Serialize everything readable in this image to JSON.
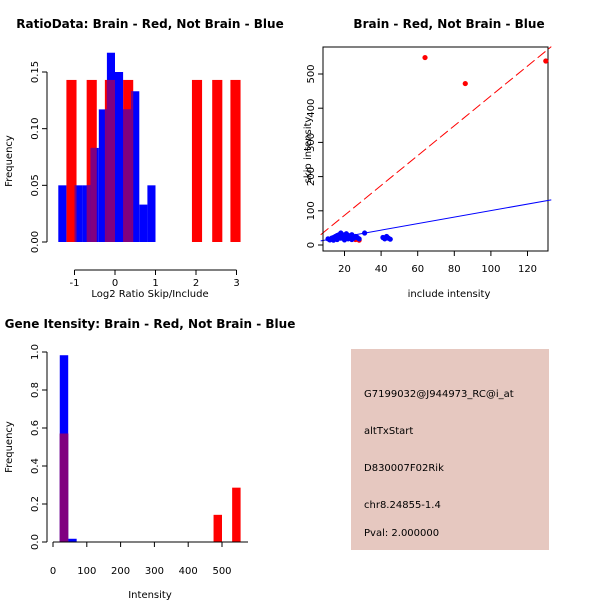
{
  "chart_data": [
    {
      "id": "ratio_hist",
      "type": "bar",
      "title": "RatioData: Brain - Red, Not Brain - Blue",
      "xlabel": "Log2 Ratio Skip/Include",
      "ylabel": "Frequency",
      "xlim": [
        -1.4,
        3.2
      ],
      "ylim": [
        0,
        0.17
      ],
      "xticks": [
        -1,
        0,
        1,
        2,
        3
      ],
      "yticks": [
        0.0,
        0.05,
        0.1,
        0.15
      ],
      "ytick_labels": [
        "0.00",
        "0.05",
        "0.10",
        "0.15"
      ],
      "series": [
        {
          "name": "Brain",
          "color": "#ff0000",
          "bins": [
            {
              "x0": -1.2,
              "x1": -0.95,
              "value": 0.143
            },
            {
              "x0": -0.7,
              "x1": -0.45,
              "value": 0.143
            },
            {
              "x0": -0.25,
              "x1": 0.0,
              "value": 0.143
            },
            {
              "x0": 0.2,
              "x1": 0.45,
              "value": 0.143
            },
            {
              "x0": 1.9,
              "x1": 2.15,
              "value": 0.143
            },
            {
              "x0": 2.4,
              "x1": 2.65,
              "value": 0.143
            },
            {
              "x0": 2.85,
              "x1": 3.1,
              "value": 0.143
            }
          ]
        },
        {
          "name": "Not Brain",
          "color": "#0000ff",
          "bins": [
            {
              "x0": -1.4,
              "x1": -1.2,
              "value": 0.05
            },
            {
              "x0": -1.0,
              "x1": -0.8,
              "value": 0.05
            },
            {
              "x0": -0.8,
              "x1": -0.6,
              "value": 0.05
            },
            {
              "x0": -0.6,
              "x1": -0.4,
              "value": 0.083
            },
            {
              "x0": -0.4,
              "x1": -0.2,
              "value": 0.117
            },
            {
              "x0": -0.2,
              "x1": 0.0,
              "value": 0.167
            },
            {
              "x0": 0.0,
              "x1": 0.2,
              "value": 0.15
            },
            {
              "x0": 0.2,
              "x1": 0.4,
              "value": 0.117
            },
            {
              "x0": 0.4,
              "x1": 0.6,
              "value": 0.133
            },
            {
              "x0": 0.6,
              "x1": 0.8,
              "value": 0.033
            },
            {
              "x0": 0.8,
              "x1": 1.0,
              "value": 0.05
            }
          ]
        }
      ]
    },
    {
      "id": "skip_scatter",
      "type": "scatter",
      "title": "Brain - Red, Not Brain - Blue",
      "xlabel": "include intensity",
      "ylabel": "skip intensity",
      "xlim": [
        5,
        133
      ],
      "ylim": [
        -5,
        580
      ],
      "xticks": [
        20,
        40,
        60,
        80,
        100,
        120
      ],
      "yticks": [
        0,
        100,
        200,
        300,
        400,
        500
      ],
      "series": [
        {
          "name": "Brain",
          "color": "#ff0000",
          "points": [
            [
              64,
              548
            ],
            [
              86,
              472
            ],
            [
              130,
              538
            ],
            [
              16,
              20
            ],
            [
              18,
              24
            ],
            [
              20,
              18
            ],
            [
              22,
              28
            ],
            [
              24,
              22
            ],
            [
              26,
              16
            ],
            [
              28,
              14
            ]
          ],
          "fit": {
            "x": [
              7,
              133
            ],
            "y": [
              30,
              580
            ],
            "style": "dashed"
          }
        },
        {
          "name": "Not Brain",
          "color": "#0000ff",
          "points": [
            [
              11,
              18
            ],
            [
              12,
              15
            ],
            [
              13,
              20
            ],
            [
              14,
              22
            ],
            [
              14,
              14
            ],
            [
              15,
              25
            ],
            [
              15,
              18
            ],
            [
              16,
              28
            ],
            [
              16,
              16
            ],
            [
              17,
              30
            ],
            [
              17,
              22
            ],
            [
              18,
              35
            ],
            [
              18,
              20
            ],
            [
              19,
              25
            ],
            [
              19,
              30
            ],
            [
              20,
              26
            ],
            [
              20,
              15
            ],
            [
              21,
              33
            ],
            [
              21,
              22
            ],
            [
              22,
              18
            ],
            [
              22,
              28
            ],
            [
              23,
              24
            ],
            [
              24,
              30
            ],
            [
              24,
              16
            ],
            [
              25,
              20
            ],
            [
              26,
              25
            ],
            [
              27,
              22
            ],
            [
              28,
              18
            ],
            [
              31,
              35
            ],
            [
              41,
              22
            ],
            [
              42,
              18
            ],
            [
              43,
              25
            ],
            [
              44,
              20
            ],
            [
              45,
              17
            ]
          ],
          "fit": {
            "x": [
              7,
              133
            ],
            "y": [
              12,
              132
            ],
            "style": "solid"
          }
        }
      ]
    },
    {
      "id": "intensity_hist",
      "type": "bar",
      "title": "Gene Itensity: Brain - Red, Not Brain - Blue",
      "xlabel": "Intensity",
      "ylabel": "Frequency",
      "xlim": [
        0,
        570
      ],
      "ylim": [
        0,
        1.0
      ],
      "xticks": [
        0,
        100,
        200,
        300,
        400,
        500
      ],
      "yticks": [
        0.0,
        0.2,
        0.4,
        0.6,
        0.8,
        1.0
      ],
      "ytick_labels": [
        "0.0",
        "0.2",
        "0.4",
        "0.6",
        "0.8",
        "1.0"
      ],
      "series": [
        {
          "name": "Brain",
          "color": "#ff0000",
          "bins": [
            {
              "x0": 20,
              "x1": 45,
              "value": 0.571
            },
            {
              "x0": 475,
              "x1": 500,
              "value": 0.143
            },
            {
              "x0": 530,
              "x1": 555,
              "value": 0.286
            }
          ]
        },
        {
          "name": "Not Brain",
          "color": "#0000ff",
          "bins": [
            {
              "x0": 20,
              "x1": 45,
              "value": 0.983
            },
            {
              "x0": 45,
              "x1": 70,
              "value": 0.017
            }
          ]
        }
      ]
    }
  ],
  "info_panel": {
    "id_label": "G7199032@J944973_RC@i_at",
    "event_type": "altTxStart",
    "gene": "D830007F02Rik",
    "location": "chr8.24855-1.4",
    "pval": "Pval: 2.000000",
    "bg_color": "#e6c8c0",
    "pval_color": "#cc0000"
  }
}
